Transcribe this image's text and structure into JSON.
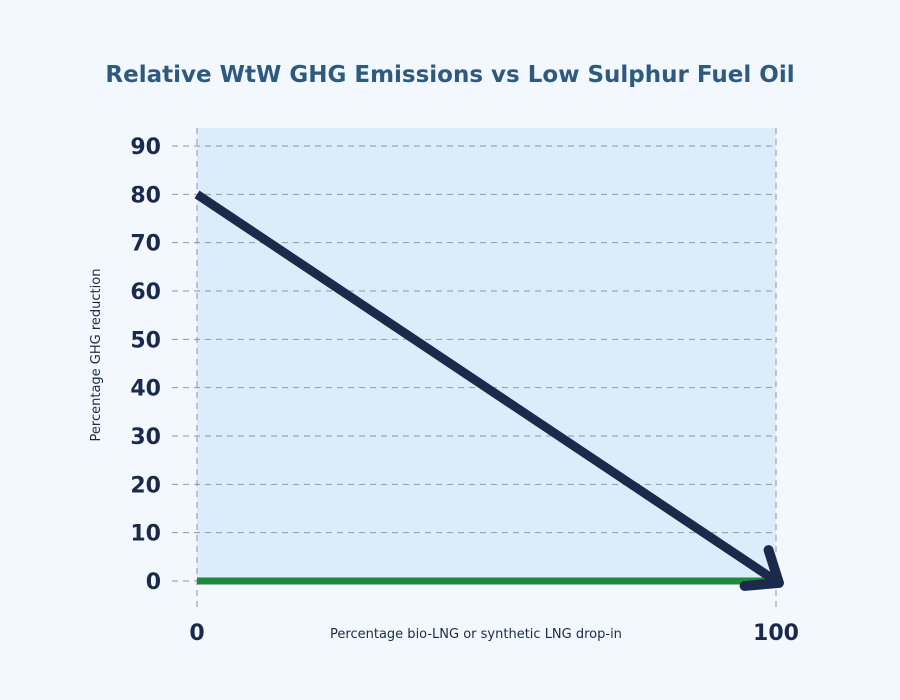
{
  "chart_data": {
    "type": "line",
    "title": "Relative WtW GHG Emissions vs Low Sulphur Fuel Oil",
    "xlabel": "Percentage bio-LNG or synthetic LNG drop-in",
    "ylabel": "Percentage GHG reduction",
    "xlim": [
      0,
      100
    ],
    "ylim": [
      0,
      90
    ],
    "x_ticks": [
      0,
      100
    ],
    "y_ticks": [
      0,
      10,
      20,
      30,
      40,
      50,
      60,
      70,
      80,
      90
    ],
    "grid": true,
    "series": [
      {
        "x": [
          0,
          100
        ],
        "y": [
          80,
          0
        ],
        "color": "#1b2a4a",
        "style": "arrow"
      },
      {
        "x": [
          0,
          100
        ],
        "y": [
          0,
          0
        ],
        "color": "#1e8a3c",
        "style": "line"
      }
    ]
  },
  "colors": {
    "page_background": "#f2f8fd",
    "plot_background": "#dbecfb",
    "title": "#2e5a80",
    "text": "#1b2a4a",
    "grid": "#8a99aa"
  }
}
